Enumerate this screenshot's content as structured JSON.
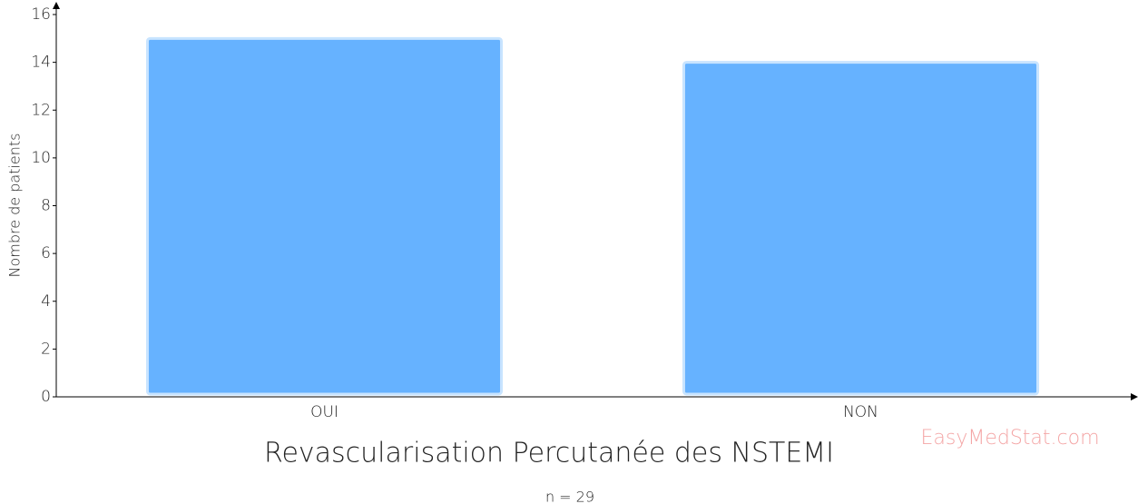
{
  "chart_data": {
    "type": "bar",
    "x_label": "Revascularisation Percutanée des NSTEMI",
    "y_label": "Nombre de patients",
    "annotation": "n = 29",
    "watermark": "EasyMedStat.com",
    "categories": [
      "OUI",
      "NON"
    ],
    "values": [
      15,
      14
    ],
    "color": "#66b2ff",
    "ylim": [
      0,
      16
    ],
    "yticks": [
      0,
      2,
      4,
      6,
      8,
      10,
      12,
      14,
      16
    ],
    "grid": false
  }
}
